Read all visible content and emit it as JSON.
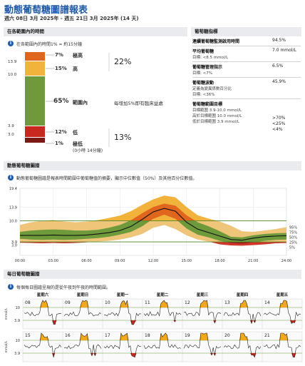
{
  "report": {
    "title": "動態葡萄糖圖譜報表",
    "date_range": "週六 08日 3月 2025年 - 週五 21日 3月 2025年 (14 天)"
  },
  "tir": {
    "heading": "在各範圍內的時間",
    "note": "在各範圍內的時間1% = 約15分鐘",
    "axis": [
      "13.9",
      "10.0",
      "3.9",
      "3.0"
    ],
    "rows": [
      {
        "pct": "7%",
        "label": "極高"
      },
      {
        "pct": "15%",
        "label": "高"
      },
      {
        "pct": "65%",
        "label": "範圍內"
      },
      {
        "pct": "12%",
        "label": "低"
      },
      {
        "pct": "1%",
        "label": "極低",
        "sub": "(0小時 14分鐘)"
      }
    ],
    "combined_high": "22%",
    "combined_low": "13%",
    "benefit_note": "每增加5%即有臨床益處",
    "bar_fractions": [
      0.07,
      0.15,
      0.65,
      0.12,
      0.01
    ],
    "colors": [
      "#e0651d",
      "#f2b33d",
      "#6e9a3c",
      "#c8281e",
      "#7b1a14"
    ]
  },
  "metrics": {
    "heading": "葡萄糖指標",
    "rows": [
      {
        "label": "連續葡萄糖監測啟用時間",
        "sub": "",
        "value": "94.5%"
      },
      {
        "label": "平均葡萄糖",
        "sub": "目標: <8.5 mmol/L",
        "value": "7.0 mmol/L"
      },
      {
        "label": "葡萄糖管理指示",
        "sub": "目標: <7%",
        "value": "6.5%"
      },
      {
        "label": "葡萄糖波動",
        "sub": "定義為變異係數百分比\n目標: <36%",
        "value": "45.9%"
      }
    ],
    "range_goal": {
      "label": "葡萄糖範圍目標",
      "lines": [
        "目標範圍 3.9-10.0 mmol/L",
        "高於目標範圍 10.0 mmol/L",
        "低於目標範圍 3.9 mmol/L"
      ],
      "values": [
        ">70%",
        "<25%",
        "<4%"
      ]
    }
  },
  "agp": {
    "heading": "動態葡萄糖圖譜",
    "note": "動態葡萄糖圖譜是報表時間範圍中葡萄糖值的摘要，顯示中位數值（50%）及其他百分位數值。",
    "y_ticks": [
      "19.4",
      "13.9",
      "10.0",
      "3.9",
      "3.0"
    ],
    "x_ticks": [
      "00:00",
      "03:00",
      "06:00",
      "09:00",
      "12:00",
      "15:00",
      "18:00",
      "21:00",
      "24:00"
    ],
    "pct_labels": [
      "95%",
      "75%",
      "50%",
      "25%",
      "5%"
    ]
  },
  "chart_data": {
    "type": "area",
    "xlabel": "",
    "ylabel": "",
    "x": [
      "00:00",
      "01:00",
      "02:00",
      "03:00",
      "04:00",
      "05:00",
      "06:00",
      "07:00",
      "08:00",
      "09:00",
      "10:00",
      "11:00",
      "12:00",
      "13:00",
      "14:00",
      "15:00",
      "16:00",
      "17:00",
      "18:00",
      "19:00",
      "20:00",
      "21:00",
      "22:00",
      "23:00",
      "24:00"
    ],
    "ylim": [
      0,
      19.4
    ],
    "series": [
      {
        "name": "95%",
        "values": [
          8.8,
          9.6,
          10.0,
          10.2,
          9.8,
          9.6,
          9.8,
          10.2,
          10.8,
          11.5,
          12.8,
          14.6,
          16.2,
          17.3,
          16.8,
          14.0,
          11.6,
          10.6,
          9.8,
          8.6,
          7.0,
          6.8,
          7.2,
          7.6,
          8.2
        ]
      },
      {
        "name": "75%",
        "values": [
          6.8,
          7.2,
          7.4,
          7.5,
          7.4,
          7.2,
          7.2,
          7.4,
          8.0,
          8.8,
          10.2,
          12.2,
          14.0,
          15.0,
          14.4,
          11.6,
          9.6,
          8.4,
          7.0,
          5.4,
          5.2,
          5.8,
          6.2,
          6.4,
          6.5
        ]
      },
      {
        "name": "50%",
        "values": [
          5.8,
          5.8,
          5.8,
          5.9,
          5.8,
          5.8,
          5.9,
          6.2,
          6.6,
          7.2,
          8.4,
          10.4,
          12.6,
          13.6,
          12.8,
          9.6,
          7.6,
          6.6,
          5.6,
          4.6,
          4.4,
          5.0,
          5.4,
          5.6,
          5.7
        ]
      },
      {
        "name": "25%",
        "values": [
          4.8,
          4.6,
          4.5,
          4.6,
          4.5,
          4.6,
          4.8,
          5.0,
          5.4,
          6.0,
          6.8,
          8.4,
          10.6,
          11.8,
          10.6,
          7.8,
          6.0,
          5.2,
          4.2,
          3.6,
          3.4,
          3.8,
          4.2,
          4.5,
          4.6
        ]
      },
      {
        "name": "5%",
        "values": [
          3.7,
          3.6,
          3.5,
          3.6,
          3.5,
          3.6,
          3.8,
          4.0,
          4.2,
          4.6,
          5.2,
          6.2,
          8.0,
          8.8,
          7.6,
          5.8,
          4.6,
          4.0,
          3.2,
          2.9,
          2.8,
          3.0,
          3.2,
          3.5,
          3.6
        ]
      }
    ],
    "target_range": [
      3.9,
      10.0
    ]
  },
  "daily": {
    "heading": "每日葡萄糖圖譜",
    "note": "每個每日圖譜呈現的是從午夜到午夜的時間範圍。",
    "weekdays": [
      "星期六",
      "星期日",
      "星期一",
      "星期二",
      "星期三",
      "星期四",
      "星期五"
    ],
    "week1_dates": [
      "08",
      "09",
      "10",
      "11",
      "12",
      "13",
      "14"
    ],
    "week2_dates": [
      "15",
      "16",
      "17",
      "18",
      "19",
      "20",
      "21"
    ],
    "y_unit": "mmol/L",
    "y_ticks": [
      "10",
      "3.9"
    ]
  }
}
